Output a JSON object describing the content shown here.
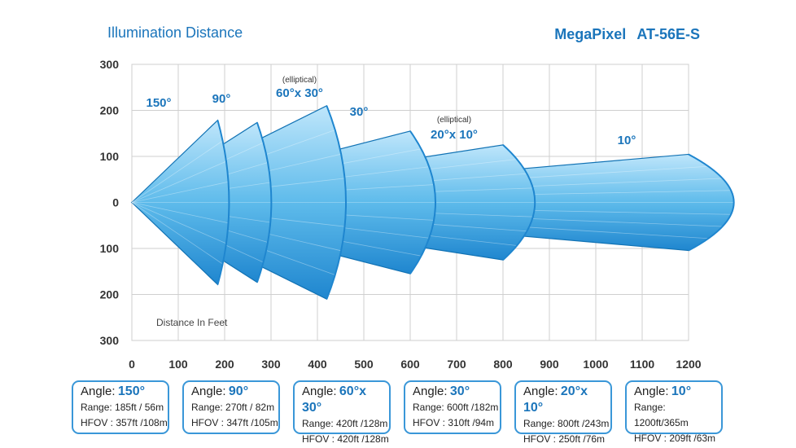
{
  "header": {
    "title": "Illumination Distance",
    "brand": "MegaPixel",
    "model": "AT-56E-S"
  },
  "chart_data": {
    "type": "area",
    "xlim": [
      0,
      1200
    ],
    "ylim": [
      -300,
      300
    ],
    "x_ticks": [
      "0",
      "100",
      "200",
      "300",
      "400",
      "500",
      "600",
      "700",
      "800",
      "900",
      "1000",
      "1100",
      "1200"
    ],
    "y_ticks": [
      "300",
      "200",
      "100",
      "0",
      "100",
      "200",
      "300"
    ],
    "grid": true,
    "axis_note": "Distance In Feet",
    "series": [
      {
        "label": "150°",
        "range_ft": 185,
        "hfov_ft": 357,
        "half_angle_deg": 75,
        "note": ""
      },
      {
        "label": "90°",
        "range_ft": 270,
        "hfov_ft": 347,
        "half_angle_deg": 45,
        "note": ""
      },
      {
        "label": "60°x 30°",
        "range_ft": 420,
        "hfov_ft": 420,
        "half_angle_deg": 30,
        "note": "(elliptical)"
      },
      {
        "label": "30°",
        "range_ft": 600,
        "hfov_ft": 310,
        "half_angle_deg": 15,
        "note": ""
      },
      {
        "label": "20°x 10°",
        "range_ft": 800,
        "hfov_ft": 250,
        "half_angle_deg": 10,
        "note": "(elliptical)"
      },
      {
        "label": "10°",
        "range_ft": 1200,
        "hfov_ft": 209,
        "half_angle_deg": 5,
        "note": ""
      }
    ]
  },
  "colors": {
    "light": "#bfe6fb",
    "mid": "#5ebbeb",
    "dark": "#1f86cf",
    "edge": "#1172b4",
    "accent": "#1b75bb"
  },
  "cards": [
    {
      "angle_label": "Angle:",
      "angle": "150°",
      "range": "Range: 185ft / 56m",
      "hfov": "HFOV : 357ft /108m"
    },
    {
      "angle_label": "Angle:",
      "angle": "90°",
      "range": "Range: 270ft / 82m",
      "hfov": "HFOV : 347ft /105m"
    },
    {
      "angle_label": "Angle:",
      "angle": "60°x 30°",
      "range": "Range: 420ft /128m",
      "hfov": "HFOV : 420ft /128m"
    },
    {
      "angle_label": "Angle:",
      "angle": "30°",
      "range": "Range: 600ft /182m",
      "hfov": "HFOV : 310ft /94m"
    },
    {
      "angle_label": "Angle:",
      "angle": "20°x 10°",
      "range": "Range: 800ft /243m",
      "hfov": "HFOV : 250ft /76m"
    },
    {
      "angle_label": "Angle:",
      "angle": "10°",
      "range": "Range: 1200ft/365m",
      "hfov": "HFOV : 209ft /63m"
    }
  ]
}
